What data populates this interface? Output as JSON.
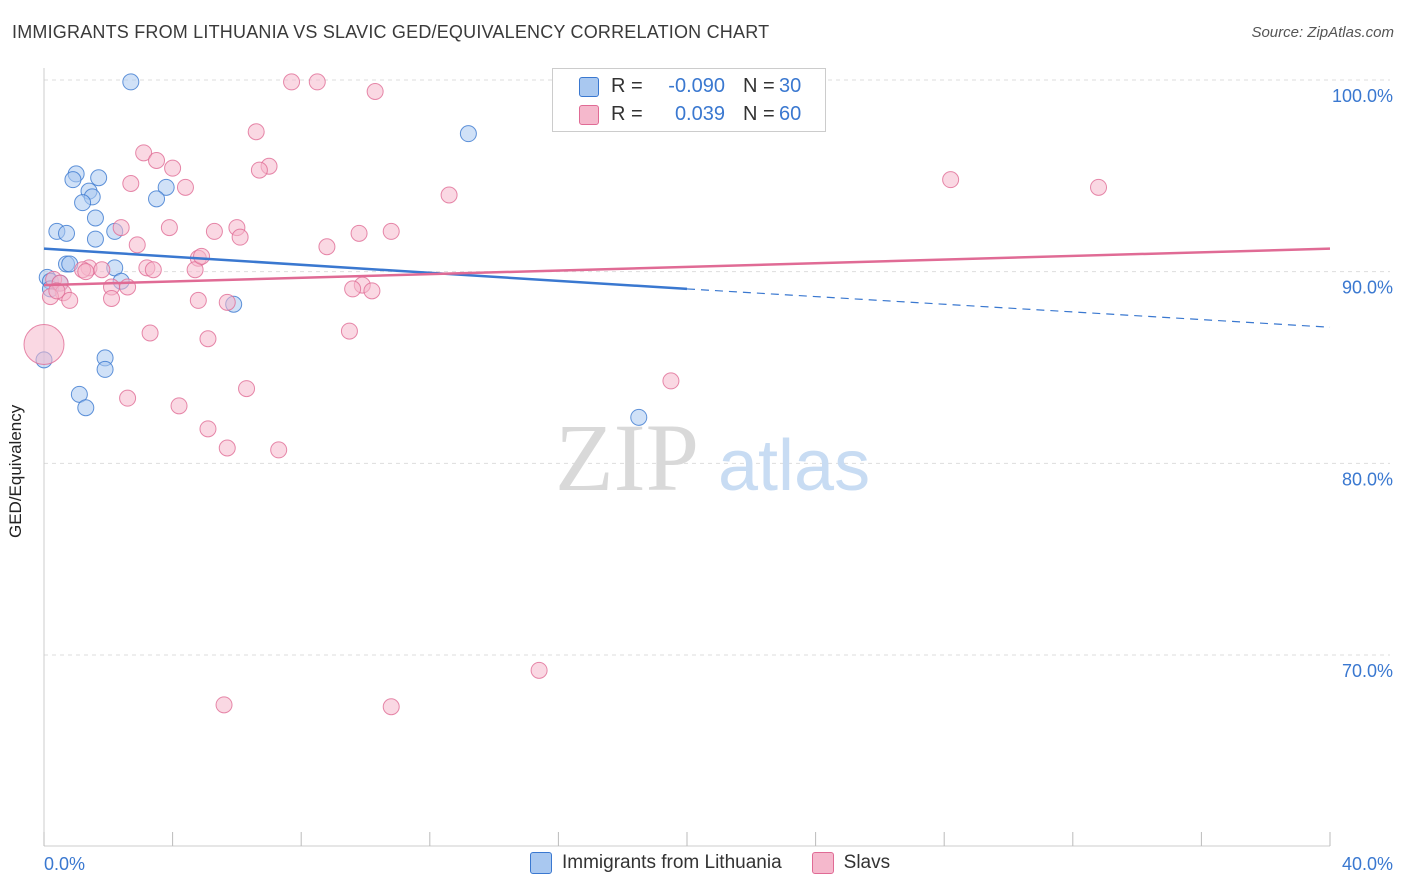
{
  "header": {
    "title": "IMMIGRANTS FROM LITHUANIA VS SLAVIC GED/EQUIVALENCY CORRELATION CHART",
    "source": "Source: ZipAtlas.com"
  },
  "legend": {
    "rows": [
      {
        "r_label": "R =",
        "r_value": "-0.090",
        "n_label": "N =",
        "n_value": "30"
      },
      {
        "r_label": "R =",
        "r_value": "0.039",
        "n_label": "N =",
        "n_value": "60"
      }
    ]
  },
  "bottom_legend": {
    "items": [
      {
        "label": "Immigrants from Lithuania"
      },
      {
        "label": "Slavs"
      }
    ]
  },
  "colors": {
    "blue": "#3a78d0",
    "blue_fill": "#a9c8f0",
    "pink": "#e06b95",
    "pink_fill": "#f5b8cc",
    "grid": "#dddddd",
    "tick_label": "#3a78d0"
  },
  "chart_data": {
    "type": "scatter",
    "title": "IMMIGRANTS FROM LITHUANIA VS SLAVIC GED/EQUIVALENCY CORRELATION CHART",
    "xlabel": "",
    "ylabel": "GED/Equivalency",
    "xlim": [
      0,
      40
    ],
    "ylim": [
      60,
      103
    ],
    "x_tick_labels": [
      "0.0%",
      "40.0%"
    ],
    "y_ticks": [
      70,
      80,
      90,
      100
    ],
    "y_tick_labels": [
      "70.0%",
      "80.0%",
      "90.0%",
      "100.0%"
    ],
    "watermark": {
      "zip": "ZIP",
      "atlas": "atlas"
    },
    "series": [
      {
        "name": "Immigrants from Lithuania",
        "color": "blue",
        "points": [
          [
            2.7,
            99.9
          ],
          [
            13.2,
            97.2
          ],
          [
            1.0,
            95.1
          ],
          [
            1.7,
            94.9
          ],
          [
            0.9,
            94.8
          ],
          [
            1.4,
            94.2
          ],
          [
            3.8,
            94.4
          ],
          [
            1.5,
            93.9
          ],
          [
            3.5,
            93.8
          ],
          [
            1.2,
            93.6
          ],
          [
            1.6,
            92.8
          ],
          [
            0.4,
            92.1
          ],
          [
            0.7,
            92.0
          ],
          [
            2.2,
            92.1
          ],
          [
            1.6,
            91.7
          ],
          [
            0.7,
            90.4
          ],
          [
            0.8,
            90.4
          ],
          [
            2.2,
            90.2
          ],
          [
            0.1,
            89.7
          ],
          [
            0.2,
            89.5
          ],
          [
            0.5,
            89.4
          ],
          [
            2.4,
            89.5
          ],
          [
            0.2,
            89.1
          ],
          [
            5.9,
            88.3
          ],
          [
            1.9,
            85.5
          ],
          [
            1.9,
            84.9
          ],
          [
            0.0,
            85.4
          ],
          [
            1.1,
            83.6
          ],
          [
            1.3,
            82.9
          ],
          [
            18.5,
            82.4
          ]
        ],
        "trend": {
          "x0": 0,
          "y0": 91.2,
          "x1": 20,
          "y1": 89.1,
          "dash_to_x": 40,
          "dash_to_y": 87.1
        }
      },
      {
        "name": "Slavs",
        "color": "pink",
        "points": [
          [
            7.7,
            99.9
          ],
          [
            8.5,
            99.9
          ],
          [
            10.3,
            99.4
          ],
          [
            6.6,
            97.3
          ],
          [
            3.1,
            96.2
          ],
          [
            3.5,
            95.8
          ],
          [
            4.0,
            95.4
          ],
          [
            7.0,
            95.5
          ],
          [
            6.7,
            95.3
          ],
          [
            2.7,
            94.6
          ],
          [
            4.4,
            94.4
          ],
          [
            12.6,
            94.0
          ],
          [
            28.2,
            94.8
          ],
          [
            32.8,
            94.4
          ],
          [
            3.9,
            92.3
          ],
          [
            5.3,
            92.1
          ],
          [
            6.0,
            92.3
          ],
          [
            6.1,
            91.8
          ],
          [
            9.8,
            92.0
          ],
          [
            10.8,
            92.1
          ],
          [
            2.9,
            91.4
          ],
          [
            8.8,
            91.3
          ],
          [
            2.4,
            92.3
          ],
          [
            4.8,
            90.7
          ],
          [
            1.4,
            90.2
          ],
          [
            1.2,
            90.1
          ],
          [
            1.8,
            90.1
          ],
          [
            3.2,
            90.2
          ],
          [
            4.7,
            90.1
          ],
          [
            0.3,
            89.6
          ],
          [
            0.5,
            89.4
          ],
          [
            9.9,
            89.3
          ],
          [
            10.2,
            89.0
          ],
          [
            2.1,
            89.2
          ],
          [
            2.6,
            89.2
          ],
          [
            9.6,
            89.1
          ],
          [
            0.6,
            88.9
          ],
          [
            0.2,
            88.7
          ],
          [
            0.8,
            88.5
          ],
          [
            2.1,
            88.6
          ],
          [
            4.8,
            88.5
          ],
          [
            5.7,
            88.4
          ],
          [
            0.4,
            89.0
          ],
          [
            3.3,
            86.8
          ],
          [
            9.5,
            86.9
          ],
          [
            5.1,
            86.5
          ],
          [
            0.0,
            86.2
          ],
          [
            19.5,
            84.3
          ],
          [
            6.3,
            83.9
          ],
          [
            2.6,
            83.4
          ],
          [
            4.2,
            83.0
          ],
          [
            5.1,
            81.8
          ],
          [
            5.7,
            80.8
          ],
          [
            7.3,
            80.7
          ],
          [
            15.4,
            69.2
          ],
          [
            5.6,
            67.4
          ],
          [
            10.8,
            67.3
          ],
          [
            4.9,
            90.8
          ],
          [
            1.3,
            90.0
          ],
          [
            3.4,
            90.1
          ]
        ],
        "trend": {
          "x0": 0,
          "y0": 89.3,
          "x1": 40,
          "y1": 91.2
        }
      }
    ]
  }
}
